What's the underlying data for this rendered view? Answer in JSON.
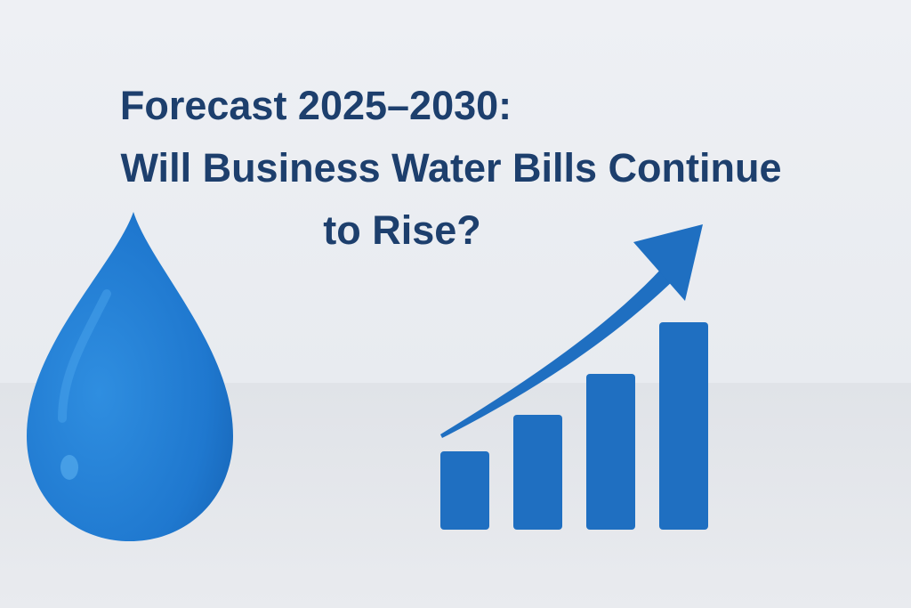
{
  "title": {
    "lines": [
      "Forecast 2025–2030:",
      "Will Business Water Bills Continue",
      "to Rise?"
    ]
  }
}
